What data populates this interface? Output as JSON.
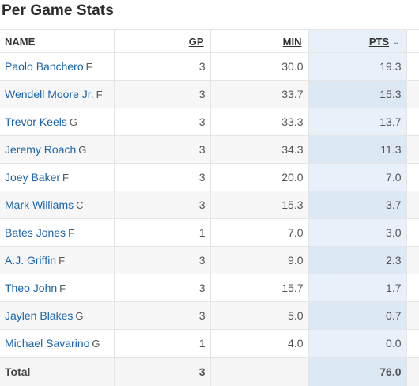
{
  "title": "Per Game Stats",
  "headers": {
    "name": "NAME",
    "gp": "GP",
    "min": "MIN",
    "pts": "PTS"
  },
  "players": [
    {
      "name": "Paolo Banchero",
      "pos": "F",
      "gp": "3",
      "min": "30.0",
      "pts": "19.3"
    },
    {
      "name": "Wendell Moore Jr.",
      "pos": "F",
      "gp": "3",
      "min": "33.7",
      "pts": "15.3"
    },
    {
      "name": "Trevor Keels",
      "pos": "G",
      "gp": "3",
      "min": "33.3",
      "pts": "13.7"
    },
    {
      "name": "Jeremy Roach",
      "pos": "G",
      "gp": "3",
      "min": "34.3",
      "pts": "11.3"
    },
    {
      "name": "Joey Baker",
      "pos": "F",
      "gp": "3",
      "min": "20.0",
      "pts": "7.0"
    },
    {
      "name": "Mark Williams",
      "pos": "C",
      "gp": "3",
      "min": "15.3",
      "pts": "3.7"
    },
    {
      "name": "Bates Jones",
      "pos": "F",
      "gp": "1",
      "min": "7.0",
      "pts": "3.0"
    },
    {
      "name": "A.J. Griffin",
      "pos": "F",
      "gp": "3",
      "min": "9.0",
      "pts": "2.3"
    },
    {
      "name": "Theo John",
      "pos": "F",
      "gp": "3",
      "min": "15.7",
      "pts": "1.7"
    },
    {
      "name": "Jaylen Blakes",
      "pos": "G",
      "gp": "3",
      "min": "5.0",
      "pts": "0.7"
    },
    {
      "name": "Michael Savarino",
      "pos": "G",
      "gp": "1",
      "min": "4.0",
      "pts": "0.0"
    }
  ],
  "total": {
    "label": "Total",
    "gp": "3",
    "min": "",
    "pts": "76.0"
  }
}
